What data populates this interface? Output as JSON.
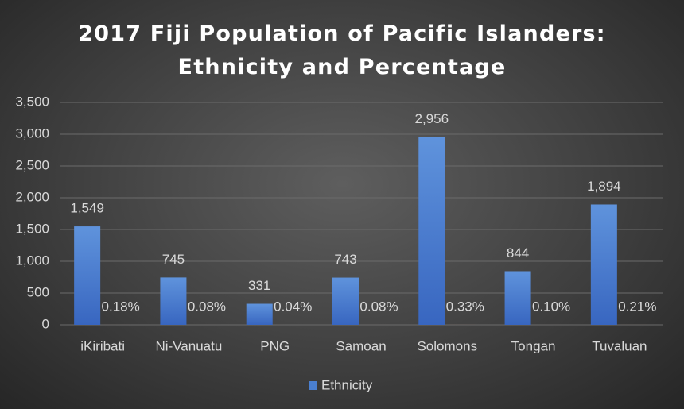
{
  "chart_data": {
    "type": "bar",
    "title": "2017 Fiji Population of Pacific Islanders: Ethnicity and Percentage",
    "categories": [
      "iKiribati",
      "Ni-Vanuatu",
      "PNG",
      "Samoan",
      "Solomons",
      "Tongan",
      "Tuvaluan"
    ],
    "series": [
      {
        "name": "Ethnicity",
        "color": "#4a7fd0",
        "values": [
          1549,
          745,
          331,
          743,
          2956,
          844,
          1894
        ],
        "value_labels": [
          "1,549",
          "745",
          "331",
          "743",
          "2,956",
          "844",
          "1,894"
        ]
      },
      {
        "color": "#e0774a",
        "values": [
          0.18,
          0.08,
          0.04,
          0.08,
          0.33,
          0.1,
          0.21
        ],
        "value_labels": [
          "0.18%",
          "0.08%",
          "0.04%",
          "0.08%",
          "0.33%",
          "0.10%",
          "0.21%"
        ]
      }
    ],
    "ylim": [
      0,
      3500
    ],
    "yticks": [
      0,
      500,
      {
        "value": 1000,
        "label": "1,000"
      },
      {
        "value": 1500,
        "label": "1,500"
      },
      {
        "value": 2000,
        "label": "2,000"
      },
      {
        "value": 2500,
        "label": "2,500"
      },
      {
        "value": 3000,
        "label": "3,000"
      },
      {
        "value": 3500,
        "label": "3,500"
      }
    ],
    "grid": true,
    "legend": "bottom"
  }
}
